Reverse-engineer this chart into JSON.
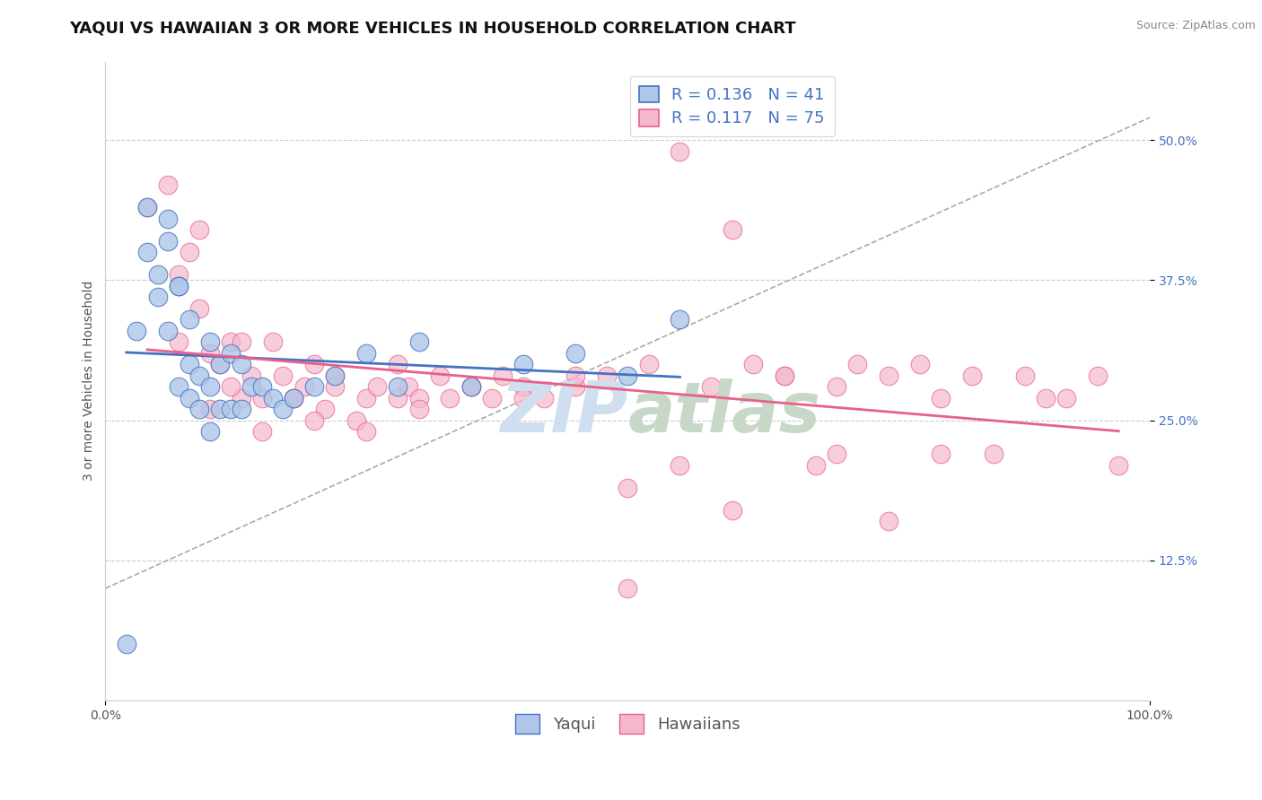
{
  "title": "YAQUI VS HAWAIIAN 3 OR MORE VEHICLES IN HOUSEHOLD CORRELATION CHART",
  "source_text": "Source: ZipAtlas.com",
  "ylabel": "3 or more Vehicles in Household",
  "xlim": [
    0.0,
    1.0
  ],
  "ylim": [
    0.0,
    0.57
  ],
  "yticks": [
    0.125,
    0.25,
    0.375,
    0.5
  ],
  "ytick_labels": [
    "12.5%",
    "25.0%",
    "37.5%",
    "50.0%"
  ],
  "xtick_labels": [
    "0.0%",
    "100.0%"
  ],
  "xticks": [
    0.0,
    1.0
  ],
  "legend_labels": [
    "Yaqui",
    "Hawaiians"
  ],
  "yaqui_R": 0.136,
  "yaqui_N": 41,
  "hawaiian_R": 0.117,
  "hawaiian_N": 75,
  "yaqui_color": "#aec6e8",
  "hawaiian_color": "#f4b8ce",
  "yaqui_line_color": "#4472c4",
  "hawaiian_line_color": "#e8608a",
  "trend_line_color": "#aaaaaa",
  "background_color": "#ffffff",
  "watermark_color": "#d0dff0",
  "title_fontsize": 13,
  "label_fontsize": 10,
  "tick_fontsize": 10,
  "legend_fontsize": 13,
  "yaqui_x": [
    0.02,
    0.04,
    0.05,
    0.05,
    0.06,
    0.06,
    0.07,
    0.07,
    0.08,
    0.08,
    0.08,
    0.09,
    0.09,
    0.1,
    0.1,
    0.1,
    0.11,
    0.11,
    0.12,
    0.12,
    0.13,
    0.13,
    0.14,
    0.15,
    0.16,
    0.17,
    0.18,
    0.2,
    0.22,
    0.25,
    0.28,
    0.3,
    0.35,
    0.4,
    0.45,
    0.5,
    0.55,
    0.03,
    0.04,
    0.06,
    0.07
  ],
  "yaqui_y": [
    0.05,
    0.44,
    0.36,
    0.38,
    0.33,
    0.41,
    0.28,
    0.37,
    0.27,
    0.3,
    0.34,
    0.26,
    0.29,
    0.24,
    0.28,
    0.32,
    0.26,
    0.3,
    0.26,
    0.31,
    0.26,
    0.3,
    0.28,
    0.28,
    0.27,
    0.26,
    0.27,
    0.28,
    0.29,
    0.31,
    0.28,
    0.32,
    0.28,
    0.3,
    0.31,
    0.29,
    0.34,
    0.33,
    0.4,
    0.43,
    0.37
  ],
  "hawaiian_x": [
    0.04,
    0.06,
    0.07,
    0.07,
    0.08,
    0.09,
    0.09,
    0.1,
    0.11,
    0.12,
    0.13,
    0.13,
    0.14,
    0.15,
    0.16,
    0.17,
    0.18,
    0.19,
    0.2,
    0.21,
    0.22,
    0.24,
    0.25,
    0.26,
    0.28,
    0.29,
    0.3,
    0.32,
    0.33,
    0.35,
    0.37,
    0.38,
    0.4,
    0.42,
    0.45,
    0.48,
    0.5,
    0.52,
    0.55,
    0.58,
    0.6,
    0.62,
    0.65,
    0.68,
    0.7,
    0.72,
    0.75,
    0.78,
    0.8,
    0.83,
    0.85,
    0.88,
    0.9,
    0.92,
    0.95,
    0.97,
    0.1,
    0.12,
    0.15,
    0.18,
    0.2,
    0.22,
    0.25,
    0.28,
    0.3,
    0.35,
    0.4,
    0.45,
    0.5,
    0.55,
    0.6,
    0.65,
    0.7,
    0.75,
    0.8
  ],
  "hawaiian_y": [
    0.44,
    0.46,
    0.32,
    0.38,
    0.4,
    0.35,
    0.42,
    0.31,
    0.3,
    0.32,
    0.27,
    0.32,
    0.29,
    0.27,
    0.32,
    0.29,
    0.27,
    0.28,
    0.3,
    0.26,
    0.29,
    0.25,
    0.27,
    0.28,
    0.3,
    0.28,
    0.27,
    0.29,
    0.27,
    0.28,
    0.27,
    0.29,
    0.28,
    0.27,
    0.28,
    0.29,
    0.19,
    0.3,
    0.21,
    0.28,
    0.17,
    0.3,
    0.29,
    0.21,
    0.28,
    0.3,
    0.16,
    0.3,
    0.27,
    0.29,
    0.22,
    0.29,
    0.27,
    0.27,
    0.29,
    0.21,
    0.26,
    0.28,
    0.24,
    0.27,
    0.25,
    0.28,
    0.24,
    0.27,
    0.26,
    0.28,
    0.27,
    0.29,
    0.1,
    0.49,
    0.42,
    0.29,
    0.22,
    0.29,
    0.22
  ]
}
